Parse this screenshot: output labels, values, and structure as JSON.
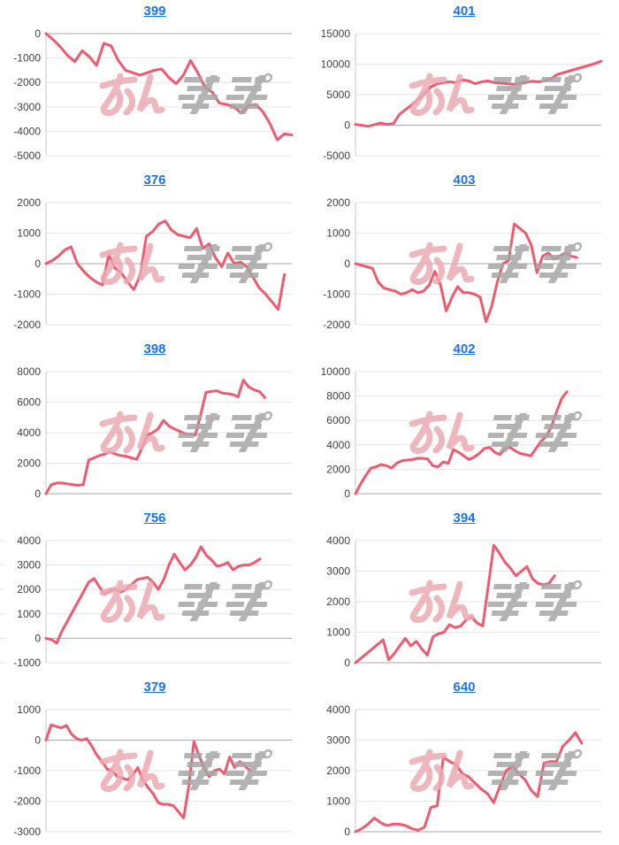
{
  "colors": {
    "line": "#ee5a70",
    "grid": "#e6e6e6",
    "zero_line": "#a8a8a8",
    "axis": "#c8c8c8",
    "tick_label": "#404040",
    "title_link": "#1a73e8",
    "background": "#ffffff"
  },
  "watermark": {
    "text": "みんレポ",
    "pink": "#ecaab2",
    "gray": "#a6a6a6"
  },
  "chart_data": [
    {
      "type": "line",
      "title": "399",
      "ylim": [
        -5000,
        0
      ],
      "ytick_step": 1000,
      "grid": true,
      "legend": "none",
      "x_span": 1.0,
      "values": [
        0,
        -250,
        -550,
        -900,
        -1150,
        -700,
        -950,
        -1300,
        -400,
        -500,
        -1100,
        -1500,
        -1600,
        -1700,
        -1600,
        -1500,
        -1450,
        -1800,
        -2050,
        -1700,
        -1100,
        -1600,
        -2200,
        -2400,
        -2850,
        -2900,
        -3000,
        -3250,
        -2950,
        -2900,
        -3200,
        -3700,
        -4350,
        -4100,
        -4150
      ]
    },
    {
      "type": "line",
      "title": "401",
      "ylim": [
        -5000,
        15000
      ],
      "ytick_step": 5000,
      "grid": true,
      "legend": "none",
      "x_span": 1.0,
      "values": [
        100,
        0,
        -200,
        100,
        350,
        150,
        250,
        1800,
        2600,
        3400,
        4300,
        5200,
        6300,
        6800,
        7000,
        7100,
        6950,
        7400,
        7250,
        6800,
        7100,
        7250,
        7000,
        6900,
        6800,
        6700,
        6800,
        7000,
        7200,
        7100,
        7250,
        7600,
        8300,
        8600,
        8900,
        9200,
        9500,
        9800,
        10100,
        10500
      ]
    },
    {
      "type": "line",
      "title": "376",
      "ylim": [
        -2000,
        2000
      ],
      "ytick_step": 1000,
      "grid": true,
      "legend": "none",
      "x_span": 0.97,
      "values": [
        0,
        100,
        250,
        450,
        550,
        0,
        -250,
        -450,
        -600,
        -700,
        300,
        -150,
        -300,
        -600,
        -850,
        -400,
        900,
        1050,
        1300,
        1400,
        1100,
        950,
        900,
        850,
        1150,
        500,
        650,
        200,
        -100,
        350,
        0,
        50,
        -100,
        -450,
        -800,
        -1000,
        -1250,
        -1500,
        -350
      ]
    },
    {
      "type": "line",
      "title": "403",
      "ylim": [
        -2000,
        2000
      ],
      "ytick_step": 1000,
      "grid": true,
      "legend": "none",
      "x_span": 0.9,
      "values": [
        0,
        -50,
        -100,
        -150,
        -600,
        -800,
        -850,
        -900,
        -1000,
        -950,
        -850,
        -950,
        -900,
        -700,
        -250,
        -700,
        -1550,
        -1100,
        -750,
        -950,
        -950,
        -1000,
        -1100,
        -1900,
        -1400,
        -600,
        0,
        100,
        1300,
        1150,
        1000,
        600,
        -300,
        250,
        350,
        150,
        250,
        350,
        250,
        200
      ]
    },
    {
      "type": "line",
      "title": "398",
      "ylim": [
        0,
        8000
      ],
      "ytick_step": 2000,
      "grid": true,
      "legend": "none",
      "x_span": 0.89,
      "values": [
        0,
        600,
        700,
        700,
        650,
        600,
        550,
        600,
        2200,
        2350,
        2500,
        2600,
        2750,
        2600,
        2500,
        2450,
        2350,
        2250,
        3000,
        3850,
        4000,
        4250,
        4800,
        4450,
        4250,
        4100,
        3950,
        3900,
        3850,
        5200,
        6650,
        6700,
        6750,
        6600,
        6550,
        6500,
        6350,
        7450,
        7000,
        6800,
        6700,
        6300
      ]
    },
    {
      "type": "line",
      "title": "402",
      "ylim": [
        0,
        10000
      ],
      "ytick_step": 2000,
      "grid": true,
      "legend": "none",
      "x_span": 0.86,
      "values": [
        0,
        800,
        1500,
        2100,
        2200,
        2400,
        2300,
        2100,
        2500,
        2700,
        2750,
        2800,
        2900,
        2900,
        2850,
        2300,
        2200,
        2600,
        2500,
        3600,
        3400,
        3100,
        2800,
        3000,
        3300,
        3700,
        3800,
        3400,
        3200,
        3700,
        3800,
        3500,
        3300,
        3200,
        3100,
        3700,
        4300,
        4700,
        5500,
        6700,
        7800,
        8350
      ]
    },
    {
      "type": "line",
      "title": "756",
      "ylim": [
        -1000,
        4000
      ],
      "ytick_step": 1000,
      "grid": true,
      "legend": "none",
      "x_span": 0.87,
      "left_edge_ticks": true,
      "values": [
        0,
        -50,
        -200,
        300,
        700,
        1100,
        1500,
        1900,
        2300,
        2450,
        2100,
        1800,
        1950,
        2000,
        1900,
        2000,
        2200,
        2400,
        2450,
        2500,
        2300,
        2000,
        2400,
        3000,
        3450,
        3100,
        2800,
        3000,
        3300,
        3750,
        3400,
        3200,
        2950,
        3000,
        3100,
        2800,
        2950,
        3000,
        3000,
        3100,
        3250
      ]
    },
    {
      "type": "line",
      "title": "394",
      "ylim": [
        0,
        4000
      ],
      "ytick_step": 1000,
      "grid": true,
      "legend": "none",
      "x_span": 0.81,
      "values": [
        0,
        150,
        300,
        450,
        600,
        750,
        100,
        300,
        550,
        800,
        550,
        700,
        450,
        250,
        850,
        950,
        1000,
        1250,
        1150,
        1200,
        1400,
        1500,
        1300,
        1200,
        2500,
        3850,
        3600,
        3300,
        3100,
        2850,
        3000,
        3150,
        2750,
        2600,
        2550,
        2600,
        2850
      ]
    },
    {
      "type": "line",
      "title": "379",
      "ylim": [
        -3000,
        1000
      ],
      "ytick_step": 1000,
      "grid": true,
      "legend": "none",
      "x_span": 0.83,
      "values": [
        0,
        500,
        450,
        400,
        480,
        200,
        50,
        0,
        50,
        -200,
        -500,
        -700,
        -950,
        -1000,
        -1200,
        -1250,
        -1300,
        -1150,
        -900,
        -1300,
        -1550,
        -1750,
        -2050,
        -2100,
        -2100,
        -2150,
        -2350,
        -2550,
        -1500,
        -50,
        -500,
        -900,
        -1200,
        -1000,
        -950,
        -1100,
        -550,
        -900,
        -700,
        -850,
        -1000
      ]
    },
    {
      "type": "line",
      "title": "640",
      "ylim": [
        0,
        4000
      ],
      "ytick_step": 1000,
      "grid": true,
      "legend": "none",
      "x_span": 0.92,
      "values": [
        0,
        100,
        250,
        450,
        300,
        200,
        250,
        250,
        200,
        100,
        50,
        150,
        800,
        850,
        2450,
        2300,
        2200,
        1900,
        1800,
        1600,
        1400,
        1250,
        950,
        1500,
        2000,
        2150,
        1900,
        1700,
        1350,
        1150,
        2250,
        2300,
        2300,
        2800,
        3000,
        3250,
        2900
      ]
    }
  ]
}
